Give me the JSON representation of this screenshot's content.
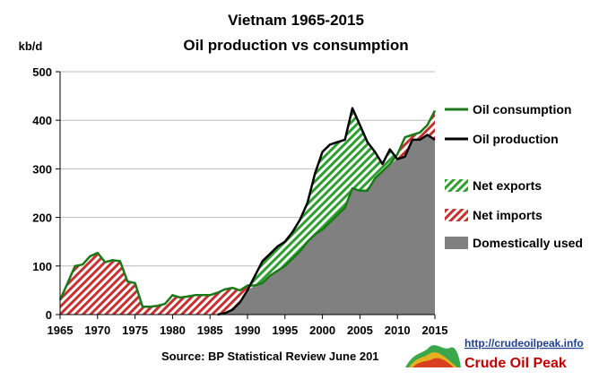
{
  "chart_data": {
    "type": "area",
    "title": "Vietnam 1965-2015",
    "subtitle": "Oil production vs consumption",
    "ylabel": "kb/d",
    "xlabel": "",
    "ylim": [
      0,
      500
    ],
    "yticks": [
      0,
      100,
      200,
      300,
      400,
      500
    ],
    "xlim": [
      1965,
      2015
    ],
    "xticks": [
      1965,
      1970,
      1975,
      1980,
      1985,
      1990,
      1995,
      2000,
      2005,
      2010,
      2015
    ],
    "x": [
      1965,
      1966,
      1967,
      1968,
      1969,
      1970,
      1971,
      1972,
      1973,
      1974,
      1975,
      1976,
      1977,
      1978,
      1979,
      1980,
      1981,
      1982,
      1983,
      1984,
      1985,
      1986,
      1987,
      1988,
      1989,
      1990,
      1991,
      1992,
      1993,
      1994,
      1995,
      1996,
      1997,
      1998,
      1999,
      2000,
      2001,
      2002,
      2003,
      2004,
      2005,
      2006,
      2007,
      2008,
      2009,
      2010,
      2011,
      2012,
      2013,
      2014,
      2015
    ],
    "series": [
      {
        "name": "Oil consumption",
        "color": "#1a7a1a",
        "values": [
          30,
          65,
          100,
          103,
          120,
          127,
          108,
          112,
          110,
          68,
          65,
          16,
          16,
          18,
          22,
          40,
          35,
          37,
          40,
          40,
          40,
          45,
          52,
          55,
          50,
          60,
          60,
          65,
          80,
          90,
          100,
          115,
          130,
          150,
          165,
          175,
          190,
          205,
          220,
          260,
          255,
          255,
          280,
          295,
          310,
          330,
          365,
          370,
          375,
          390,
          420
        ]
      },
      {
        "name": "Oil production",
        "color": "#000000",
        "values": [
          0,
          0,
          0,
          0,
          0,
          0,
          0,
          0,
          0,
          0,
          0,
          0,
          0,
          0,
          0,
          0,
          0,
          0,
          0,
          0,
          0,
          0,
          3,
          10,
          25,
          50,
          80,
          110,
          125,
          140,
          150,
          170,
          195,
          230,
          290,
          335,
          350,
          355,
          360,
          425,
          390,
          355,
          335,
          310,
          340,
          320,
          325,
          360,
          360,
          370,
          360
        ]
      }
    ],
    "fills": [
      {
        "name": "Net exports",
        "color": "#2e9e2e",
        "pattern": "diagonal-hatch"
      },
      {
        "name": "Net imports",
        "color": "#c83030",
        "pattern": "diagonal-hatch"
      },
      {
        "name": "Domestically used",
        "color": "#808080",
        "pattern": "solid"
      }
    ],
    "grid": true,
    "legend_position": "right"
  },
  "footer": {
    "source": "Source: BP Statistical Review  June 201",
    "link": "http://crudeoilpeak.info",
    "brand": "Crude Oil Peak"
  }
}
